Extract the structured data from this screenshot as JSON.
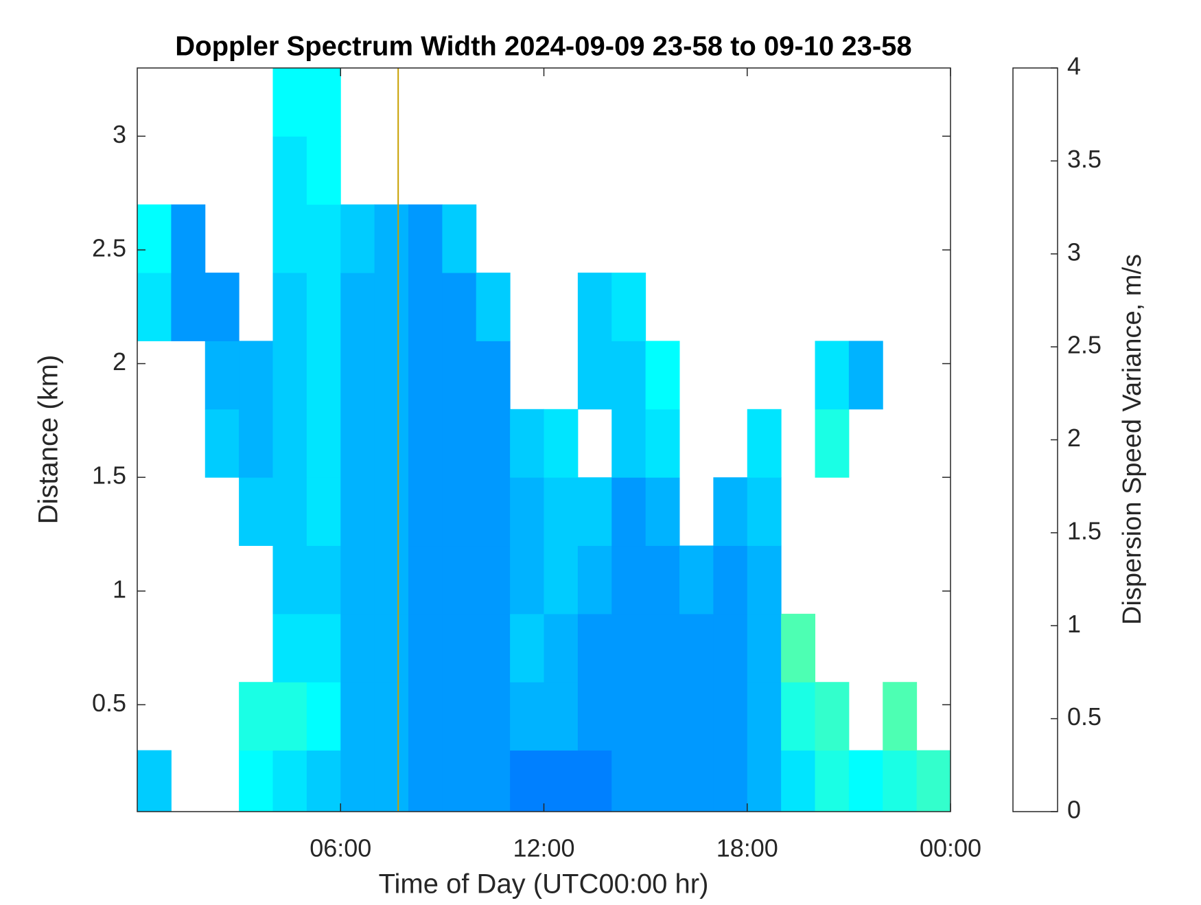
{
  "chart_data": {
    "type": "heatmap",
    "title": "Doppler Spectrum Width 2024-09-09 23-58 to 09-10 23-58",
    "xlabel": "Time of Day (UTC00:00 hr)",
    "ylabel": "Distance (km)",
    "colorbar_label": "Dispersion Speed Variance, m/s",
    "colormap": "jet",
    "xlim": [
      0,
      24
    ],
    "ylim": [
      0.03,
      3.3
    ],
    "clim": [
      0,
      4
    ],
    "xticks": [
      {
        "value": 6,
        "label": "06:00"
      },
      {
        "value": 12,
        "label": "12:00"
      },
      {
        "value": 18,
        "label": "18:00"
      },
      {
        "value": 24,
        "label": "00:00"
      }
    ],
    "yticks": [
      0.5,
      1,
      1.5,
      2,
      2.5,
      3
    ],
    "cticks": [
      0,
      0.5,
      1,
      1.5,
      2,
      2.5,
      3,
      3.5,
      4
    ],
    "xbins": [
      0,
      1,
      2,
      3,
      4,
      5,
      6,
      7,
      8,
      9,
      10,
      11,
      12,
      13,
      14,
      15,
      16,
      17,
      18,
      19,
      20,
      21,
      22,
      23,
      24
    ],
    "ybins": [
      0.03,
      0.3,
      0.6,
      0.9,
      1.2,
      1.5,
      1.8,
      2.1,
      2.4,
      2.7,
      3.0,
      3.3
    ],
    "z": [
      [
        1.3,
        null,
        null,
        1.5,
        1.4,
        1.3,
        1.2,
        1.2,
        1.1,
        1.1,
        1.1,
        1.0,
        1.0,
        1.0,
        1.1,
        1.1,
        1.1,
        1.1,
        1.2,
        1.4,
        1.6,
        1.5,
        1.6,
        1.7
      ],
      [
        null,
        null,
        null,
        1.6,
        1.6,
        1.5,
        1.2,
        1.2,
        1.1,
        1.1,
        1.1,
        1.2,
        1.2,
        1.1,
        1.1,
        1.1,
        1.1,
        1.1,
        1.2,
        1.6,
        1.7,
        null,
        1.8,
        null
      ],
      [
        null,
        null,
        null,
        null,
        1.4,
        1.4,
        1.2,
        1.2,
        1.1,
        1.1,
        1.1,
        1.3,
        1.2,
        1.1,
        1.1,
        1.1,
        1.1,
        1.1,
        1.2,
        1.8,
        null,
        null,
        null,
        null
      ],
      [
        null,
        null,
        null,
        null,
        1.3,
        1.3,
        1.2,
        1.2,
        1.1,
        1.1,
        1.1,
        1.2,
        1.3,
        1.2,
        1.1,
        1.1,
        1.2,
        1.1,
        1.2,
        null,
        null,
        null,
        null,
        null
      ],
      [
        null,
        null,
        null,
        1.3,
        1.3,
        1.4,
        1.2,
        1.2,
        1.1,
        1.1,
        1.1,
        1.2,
        1.3,
        1.3,
        1.1,
        1.2,
        null,
        1.2,
        1.3,
        null,
        null,
        null,
        null,
        null
      ],
      [
        null,
        null,
        1.3,
        1.2,
        1.3,
        1.4,
        1.2,
        1.2,
        1.1,
        1.1,
        1.1,
        1.3,
        1.4,
        null,
        1.3,
        1.4,
        null,
        null,
        1.4,
        null,
        1.6,
        null,
        null,
        null
      ],
      [
        null,
        null,
        1.2,
        1.2,
        1.3,
        1.4,
        1.2,
        1.2,
        1.1,
        1.1,
        1.1,
        null,
        null,
        1.3,
        1.3,
        1.5,
        null,
        null,
        null,
        null,
        1.4,
        1.2,
        null,
        null
      ],
      [
        1.4,
        1.1,
        1.1,
        null,
        1.3,
        1.4,
        1.2,
        1.2,
        1.1,
        1.1,
        1.3,
        null,
        null,
        1.3,
        1.4,
        null,
        null,
        null,
        null,
        null,
        null,
        null,
        null,
        null
      ],
      [
        1.5,
        1.1,
        null,
        null,
        1.4,
        1.4,
        1.3,
        1.2,
        1.1,
        1.3,
        null,
        null,
        null,
        null,
        null,
        null,
        null,
        null,
        null,
        null,
        null,
        null,
        null,
        null
      ],
      [
        null,
        null,
        null,
        null,
        1.4,
        1.5,
        null,
        null,
        null,
        null,
        null,
        null,
        null,
        null,
        null,
        null,
        null,
        null,
        null,
        null,
        null,
        null,
        null,
        null
      ],
      [
        null,
        null,
        null,
        null,
        1.5,
        1.5,
        null,
        null,
        null,
        null,
        null,
        null,
        null,
        null,
        null,
        null,
        null,
        null,
        null,
        null,
        null,
        null,
        null,
        null
      ]
    ],
    "vline": {
      "x": 7.7,
      "color": "#c8a000"
    }
  }
}
